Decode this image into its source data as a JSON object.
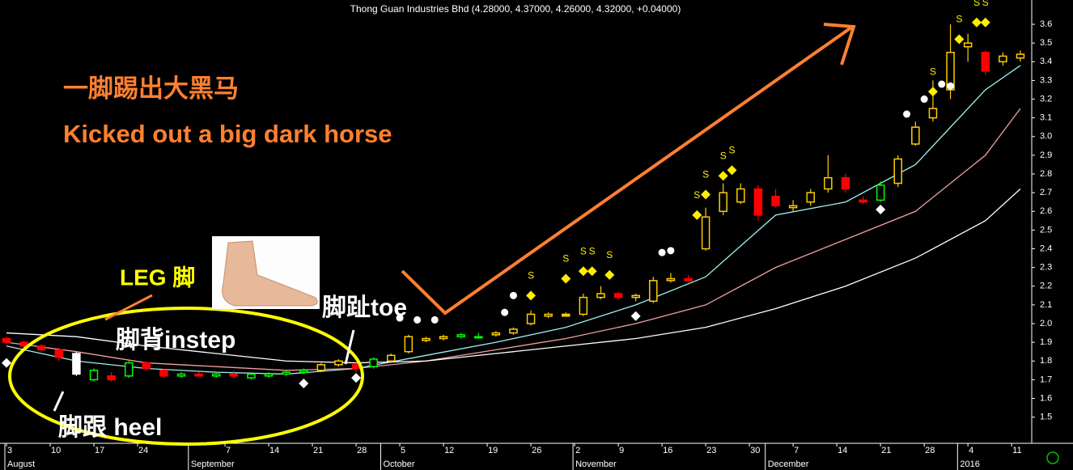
{
  "chart_data": {
    "type": "candlestick",
    "title": "Thong Guan Industries Bhd (4.28000, 4.37000, 4.26000, 4.32000, +0.04000)",
    "xlim": [
      -0.74,
      117.3
    ],
    "ylim": [
      1.36,
      3.73
    ],
    "yticks": [
      1.5,
      1.6,
      1.7,
      1.8,
      1.9,
      {
        "value": 2,
        "label": "2.0"
      },
      2.1,
      2.2,
      2.3,
      2.4,
      2.5,
      2.6,
      2.7,
      2.8,
      2.9,
      {
        "value": 3,
        "label": "3.0"
      },
      3.1,
      3.2,
      3.3,
      3.4,
      3.5,
      3.6
    ],
    "xticks": [
      {
        "value": 0,
        "label": "3"
      },
      {
        "value": 5,
        "label": "10"
      },
      {
        "value": 10,
        "label": "17"
      },
      {
        "value": 15,
        "label": "24"
      },
      {
        "value": 25,
        "label": "7"
      },
      {
        "value": 30,
        "label": "14"
      },
      {
        "value": 35,
        "label": "21"
      },
      {
        "value": 40,
        "label": "28"
      },
      {
        "value": 45,
        "label": "5"
      },
      {
        "value": 50,
        "label": "12"
      },
      {
        "value": 55,
        "label": "19"
      },
      {
        "value": 60,
        "label": "26"
      },
      {
        "value": 65,
        "label": "2"
      },
      {
        "value": 70,
        "label": "9"
      },
      {
        "value": 75,
        "label": "16"
      },
      {
        "value": 80,
        "label": "23"
      },
      {
        "value": 85,
        "label": "30"
      },
      {
        "value": 90,
        "label": "7"
      },
      {
        "value": 95,
        "label": "14"
      },
      {
        "value": 100,
        "label": "21"
      },
      {
        "value": 105,
        "label": "28"
      },
      {
        "value": 110,
        "label": "4"
      },
      {
        "value": 115,
        "label": "11"
      }
    ],
    "month_labels": [
      {
        "value": 0,
        "label": "August"
      },
      {
        "value": 21,
        "label": "September"
      },
      {
        "value": 43,
        "label": "October"
      },
      {
        "value": 65,
        "label": "November"
      },
      {
        "value": 87,
        "label": "December"
      },
      {
        "value": 109,
        "label": "2016"
      }
    ],
    "x": [
      0,
      2,
      4,
      6,
      8,
      10,
      12,
      14,
      16,
      18,
      20,
      22,
      24,
      26,
      28,
      30,
      32,
      34,
      36,
      38,
      40,
      42,
      44,
      46,
      48,
      50,
      52,
      54,
      56,
      58,
      60,
      62,
      64,
      66,
      68,
      70,
      72,
      74,
      76,
      78,
      80,
      82,
      84,
      86,
      88,
      90,
      92,
      94,
      96,
      98,
      100,
      102,
      104,
      106,
      108,
      110,
      112,
      114,
      116
    ],
    "open": [
      1.92,
      1.9,
      1.88,
      1.86,
      1.73,
      1.7,
      1.72,
      1.72,
      1.79,
      1.75,
      1.72,
      1.73,
      1.72,
      1.73,
      1.71,
      1.72,
      1.73,
      1.74,
      1.75,
      1.78,
      1.78,
      1.77,
      1.8,
      1.85,
      1.91,
      1.92,
      1.93,
      1.93,
      1.94,
      1.95,
      2.0,
      2.04,
      2.05,
      2.05,
      2.14,
      2.16,
      2.14,
      2.12,
      2.23,
      2.24,
      2.4,
      2.6,
      2.65,
      2.72,
      2.68,
      2.62,
      2.65,
      2.72,
      2.78,
      2.66,
      2.66,
      2.75,
      2.96,
      3.1,
      3.25,
      3.48,
      3.45,
      3.4,
      3.42
    ],
    "high": [
      1.93,
      1.91,
      1.89,
      1.87,
      1.85,
      1.76,
      1.74,
      1.8,
      1.8,
      1.76,
      1.74,
      1.74,
      1.74,
      1.75,
      1.74,
      1.74,
      1.75,
      1.76,
      1.79,
      1.81,
      1.79,
      1.82,
      1.84,
      1.94,
      1.93,
      1.94,
      1.95,
      1.95,
      1.96,
      1.98,
      2.07,
      2.06,
      2.06,
      2.16,
      2.2,
      2.17,
      2.16,
      2.25,
      2.27,
      2.26,
      2.62,
      2.75,
      2.75,
      2.74,
      2.72,
      2.66,
      2.72,
      2.9,
      2.8,
      2.68,
      2.76,
      2.9,
      3.08,
      3.3,
      3.6,
      3.55,
      3.46,
      3.45,
      3.46
    ],
    "low": [
      1.89,
      1.87,
      1.85,
      1.8,
      1.72,
      1.69,
      1.69,
      1.71,
      1.75,
      1.71,
      1.71,
      1.72,
      1.71,
      1.71,
      1.7,
      1.71,
      1.72,
      1.73,
      1.74,
      1.77,
      1.74,
      1.76,
      1.79,
      1.84,
      1.9,
      1.91,
      1.92,
      1.92,
      1.93,
      1.94,
      1.99,
      2.03,
      2.04,
      2.04,
      2.13,
      2.13,
      2.12,
      2.11,
      2.22,
      2.22,
      2.39,
      2.58,
      2.64,
      2.55,
      2.62,
      2.6,
      2.63,
      2.7,
      2.7,
      2.64,
      2.65,
      2.73,
      2.95,
      3.08,
      3.2,
      3.4,
      3.33,
      3.38,
      3.4
    ],
    "close": [
      1.9,
      1.88,
      1.86,
      1.82,
      1.84,
      1.75,
      1.7,
      1.79,
      1.76,
      1.72,
      1.73,
      1.72,
      1.73,
      1.72,
      1.73,
      1.73,
      1.74,
      1.75,
      1.78,
      1.8,
      1.76,
      1.81,
      1.83,
      1.93,
      1.92,
      1.93,
      1.94,
      1.93,
      1.95,
      1.97,
      2.05,
      2.05,
      2.04,
      2.14,
      2.16,
      2.14,
      2.15,
      2.23,
      2.24,
      2.23,
      2.57,
      2.7,
      2.72,
      2.58,
      2.63,
      2.63,
      2.7,
      2.78,
      2.72,
      2.65,
      2.74,
      2.88,
      3.05,
      3.15,
      3.45,
      3.5,
      3.35,
      3.43,
      3.44
    ],
    "colors": [
      "#ff0000",
      "#ff0000",
      "#ff0000",
      "#ff0000",
      "#ffffff",
      "#00ff00",
      "#ff0000",
      "#00ff00",
      "#ff0000",
      "#ff0000",
      "#00ff00",
      "#ff0000",
      "#00ff00",
      "#ff0000",
      "#00ff00",
      "#00ff00",
      "#00ff00",
      "#00ff00",
      "#ffcc00",
      "#ffcc00",
      "#ff0000",
      "#00ff00",
      "#ffcc00",
      "#ffcc00",
      "#ffcc00",
      "#ffcc00",
      "#00ff00",
      "#00ff00",
      "#ffcc00",
      "#ffcc00",
      "#ffcc00",
      "#ffcc00",
      "#ffcc00",
      "#ffcc00",
      "#ffcc00",
      "#ff0000",
      "#ffcc00",
      "#ffcc00",
      "#ffcc00",
      "#ff0000",
      "#ffcc00",
      "#ffcc00",
      "#ffcc00",
      "#ff0000",
      "#ff0000",
      "#ffcc00",
      "#ffcc00",
      "#ffcc00",
      "#ff0000",
      "#ff0000",
      "#00ff00",
      "#ffcc00",
      "#ffcc00",
      "#ffcc00",
      "#ffcc00",
      "#ffcc00",
      "#ff0000",
      "#ffcc00",
      "#ffcc00"
    ],
    "lines": [
      {
        "color": "#a0f0f0",
        "x": [
          0,
          8,
          16,
          24,
          32,
          40,
          48,
          56,
          64,
          72,
          80,
          88,
          96,
          104,
          112,
          116
        ],
        "values": [
          1.88,
          1.8,
          1.76,
          1.74,
          1.73,
          1.76,
          1.83,
          1.9,
          1.98,
          2.1,
          2.25,
          2.58,
          2.65,
          2.85,
          3.25,
          3.38
        ]
      },
      {
        "color": "#f0a0a0",
        "x": [
          0,
          8,
          16,
          24,
          32,
          40,
          48,
          56,
          64,
          72,
          80,
          88,
          96,
          104,
          112,
          116
        ],
        "values": [
          1.9,
          1.85,
          1.79,
          1.77,
          1.75,
          1.76,
          1.8,
          1.86,
          1.92,
          2.0,
          2.1,
          2.3,
          2.45,
          2.6,
          2.9,
          3.15
        ]
      },
      {
        "color": "#ffffff",
        "x": [
          0,
          8,
          16,
          24,
          32,
          40,
          48,
          56,
          64,
          72,
          80,
          88,
          96,
          104,
          112,
          116
        ],
        "values": [
          1.95,
          1.93,
          1.88,
          1.84,
          1.8,
          1.79,
          1.8,
          1.84,
          1.88,
          1.92,
          1.98,
          2.08,
          2.2,
          2.35,
          2.55,
          2.72
        ]
      }
    ],
    "markers": [
      {
        "x": 0,
        "y": 1.79,
        "shape": "diamond",
        "color": "#ffffff"
      },
      {
        "x": 34,
        "y": 1.68,
        "shape": "diamond",
        "color": "#ffffff"
      },
      {
        "x": 40,
        "y": 1.71,
        "shape": "diamond",
        "color": "#ffffff"
      },
      {
        "x": 72,
        "y": 2.04,
        "shape": "diamond",
        "color": "#ffffff"
      },
      {
        "x": 100,
        "y": 2.61,
        "shape": "diamond",
        "color": "#ffffff"
      },
      {
        "x": 45,
        "y": 2.03,
        "shape": "dot",
        "color": "#ffffff"
      },
      {
        "x": 47,
        "y": 2.02,
        "shape": "dot",
        "color": "#ffffff"
      },
      {
        "x": 49,
        "y": 2.02,
        "shape": "dot",
        "color": "#ffffff"
      },
      {
        "x": 57,
        "y": 2.06,
        "shape": "dot",
        "color": "#ffffff"
      },
      {
        "x": 58,
        "y": 2.15,
        "shape": "dot",
        "color": "#ffffff"
      },
      {
        "x": 75,
        "y": 2.38,
        "shape": "dot",
        "color": "#ffffff"
      },
      {
        "x": 76,
        "y": 2.39,
        "shape": "dot",
        "color": "#ffffff"
      },
      {
        "x": 103,
        "y": 3.12,
        "shape": "dot",
        "color": "#ffffff"
      },
      {
        "x": 105,
        "y": 3.2,
        "shape": "dot",
        "color": "#ffffff"
      },
      {
        "x": 107,
        "y": 3.28,
        "shape": "dot",
        "color": "#ffffff"
      },
      {
        "x": 108,
        "y": 3.27,
        "shape": "dot",
        "color": "#ffffff"
      },
      {
        "x": 60,
        "y": 2.15,
        "shape": "diamond",
        "color": "#ffee00",
        "label": "S"
      },
      {
        "x": 64,
        "y": 2.24,
        "shape": "diamond",
        "color": "#ffee00",
        "label": "S"
      },
      {
        "x": 66,
        "y": 2.28,
        "shape": "diamond",
        "color": "#ffee00",
        "label": "S"
      },
      {
        "x": 67,
        "y": 2.28,
        "shape": "diamond",
        "color": "#ffee00",
        "label": "S"
      },
      {
        "x": 69,
        "y": 2.26,
        "shape": "diamond",
        "color": "#ffee00",
        "label": "S"
      },
      {
        "x": 79,
        "y": 2.58,
        "shape": "diamond",
        "color": "#ffee00",
        "label": "S"
      },
      {
        "x": 80,
        "y": 2.69,
        "shape": "diamond",
        "color": "#ffee00",
        "label": "S"
      },
      {
        "x": 82,
        "y": 2.79,
        "shape": "diamond",
        "color": "#ffee00",
        "label": "S"
      },
      {
        "x": 83,
        "y": 2.82,
        "shape": "diamond",
        "color": "#ffee00",
        "label": "S"
      },
      {
        "x": 106,
        "y": 3.24,
        "shape": "diamond",
        "color": "#ffee00",
        "label": "S"
      },
      {
        "x": 109,
        "y": 3.52,
        "shape": "diamond",
        "color": "#ffee00",
        "label": "S"
      },
      {
        "x": 111,
        "y": 3.61,
        "shape": "diamond",
        "color": "#ffee00",
        "label": "S"
      },
      {
        "x": 112,
        "y": 3.61,
        "shape": "diamond",
        "color": "#ffee00",
        "label": "S"
      }
    ]
  },
  "annotations": {
    "chinese_title": "一脚踢出大黑马",
    "english_title": "Kicked out a big dark horse",
    "leg": "LEG 脚",
    "instep": "脚背instep",
    "toe": "脚趾toe",
    "heel": "脚跟 heel"
  }
}
